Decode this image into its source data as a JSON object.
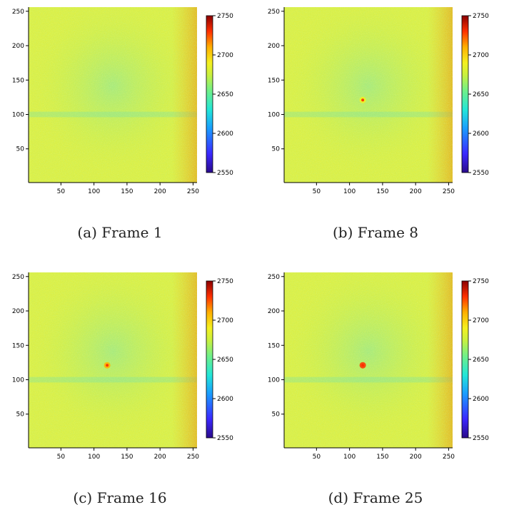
{
  "chart_data": [
    {
      "type": "heatmap",
      "caption": "(a) Frame 1",
      "x_ticks": [
        50,
        100,
        150,
        200,
        250
      ],
      "y_ticks": [
        50,
        100,
        150,
        200,
        250
      ],
      "xlim": [
        1,
        256
      ],
      "ylim": [
        1,
        256
      ],
      "color_range": [
        2550,
        2750
      ],
      "colorbar_ticks": [
        2550,
        2600,
        2650,
        2700,
        2750
      ],
      "hot_spot": null
    },
    {
      "type": "heatmap",
      "caption": "(b) Frame 8",
      "x_ticks": [
        50,
        100,
        150,
        200,
        250
      ],
      "y_ticks": [
        50,
        100,
        150,
        200,
        250
      ],
      "xlim": [
        1,
        256
      ],
      "ylim": [
        1,
        256
      ],
      "color_range": [
        2550,
        2750
      ],
      "colorbar_ticks": [
        2550,
        2600,
        2650,
        2700,
        2750
      ],
      "hot_spot": {
        "x": 120,
        "y": 121,
        "value": 2680
      }
    },
    {
      "type": "heatmap",
      "caption": "(c) Frame 16",
      "x_ticks": [
        50,
        100,
        150,
        200,
        250
      ],
      "y_ticks": [
        50,
        100,
        150,
        200,
        250
      ],
      "xlim": [
        1,
        256
      ],
      "ylim": [
        1,
        256
      ],
      "color_range": [
        2550,
        2750
      ],
      "colorbar_ticks": [
        2550,
        2600,
        2650,
        2700,
        2750
      ],
      "hot_spot": {
        "x": 120,
        "y": 121,
        "value": 2710
      }
    },
    {
      "type": "heatmap",
      "caption": "(d) Frame 25",
      "x_ticks": [
        50,
        100,
        150,
        200,
        250
      ],
      "y_ticks": [
        50,
        100,
        150,
        200,
        250
      ],
      "xlim": [
        1,
        256
      ],
      "ylim": [
        1,
        256
      ],
      "color_range": [
        2550,
        2750
      ],
      "colorbar_ticks": [
        2550,
        2600,
        2650,
        2700,
        2750
      ],
      "hot_spot": {
        "x": 120,
        "y": 121,
        "value": 2720
      }
    }
  ]
}
